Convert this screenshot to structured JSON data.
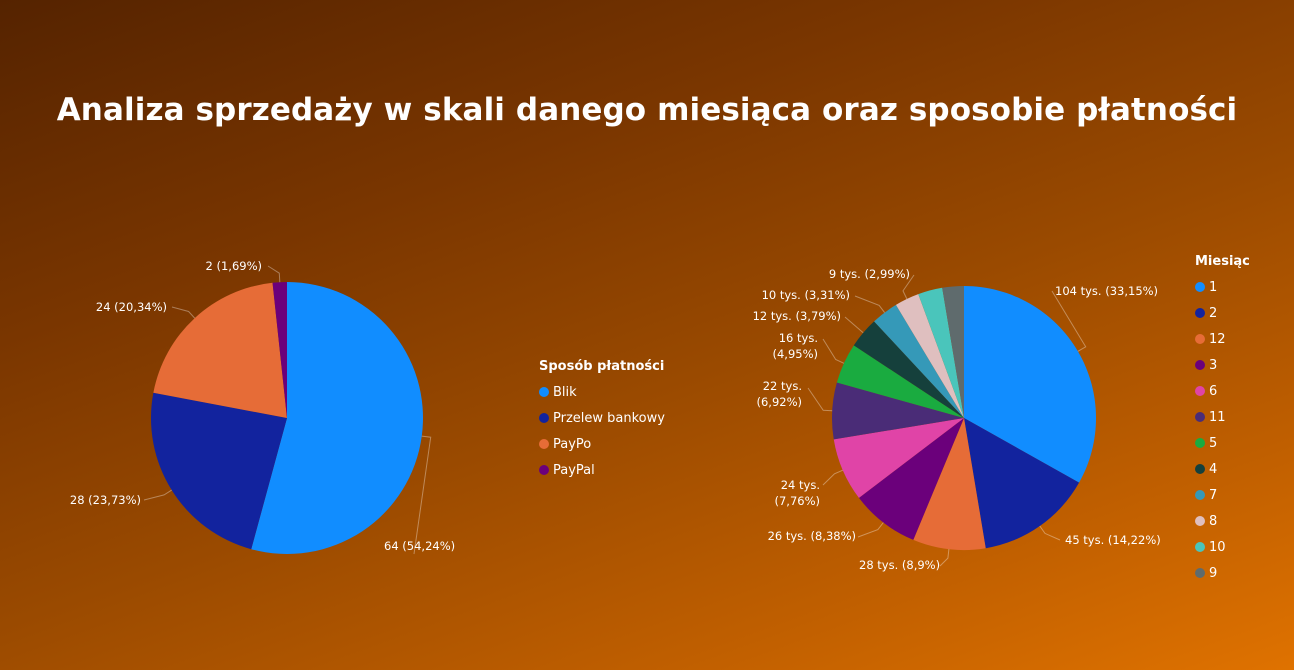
{
  "title": "Analiza sprzedaży w skali danego miesiąca oraz sposobie płatności",
  "chart_data": [
    {
      "type": "pie",
      "legend_title": "Sposób płatności",
      "legend_position": "right",
      "slices": [
        {
          "name": "Blik",
          "value": 64,
          "label": "64 (54,24%)",
          "color": "#118DFF"
        },
        {
          "name": "Przelew bankowy",
          "value": 28,
          "label": "28 (23,73%)",
          "color": "#12239E"
        },
        {
          "name": "PayPo",
          "value": 24,
          "label": "24 (20,34%)",
          "color": "#E66C37"
        },
        {
          "name": "PayPal",
          "value": 2,
          "label": "2 (1,69%)",
          "color": "#6B007B"
        }
      ]
    },
    {
      "type": "pie",
      "legend_title": "Miesiąc",
      "legend_position": "right",
      "slices": [
        {
          "name": "1",
          "value": 33.15,
          "label": "104 tys. (33,15%)",
          "color": "#118DFF"
        },
        {
          "name": "2",
          "value": 14.22,
          "label": "45 tys. (14,22%)",
          "color": "#12239E"
        },
        {
          "name": "12",
          "value": 8.9,
          "label": "28 tys. (8,9%)",
          "color": "#E66C37"
        },
        {
          "name": "3",
          "value": 8.38,
          "label": "26 tys. (8,38%)",
          "color": "#6B007B"
        },
        {
          "name": "6",
          "value": 7.76,
          "label": "24 tys. (7,76%)",
          "color": "#E044A7"
        },
        {
          "name": "11",
          "value": 6.92,
          "label": "22 tys. (6,92%)",
          "color": "#4A2C77"
        },
        {
          "name": "5",
          "value": 4.95,
          "label": "16 tys. (4,95%)",
          "color": "#1AAB40"
        },
        {
          "name": "4",
          "value": 3.79,
          "label": "12 tys. (3,79%)",
          "color": "#15403C"
        },
        {
          "name": "7",
          "value": 3.31,
          "label": "10 tys. (3,31%)",
          "color": "#3599B8"
        },
        {
          "name": "8",
          "value": 2.99,
          "label": "9 tys. (2,99%)",
          "color": "#DFBFBF"
        },
        {
          "name": "10",
          "value": 2.99,
          "label": "",
          "color": "#4AC5BB"
        },
        {
          "name": "9",
          "value": 2.64,
          "label": "",
          "color": "#5F6B6D"
        }
      ]
    }
  ]
}
